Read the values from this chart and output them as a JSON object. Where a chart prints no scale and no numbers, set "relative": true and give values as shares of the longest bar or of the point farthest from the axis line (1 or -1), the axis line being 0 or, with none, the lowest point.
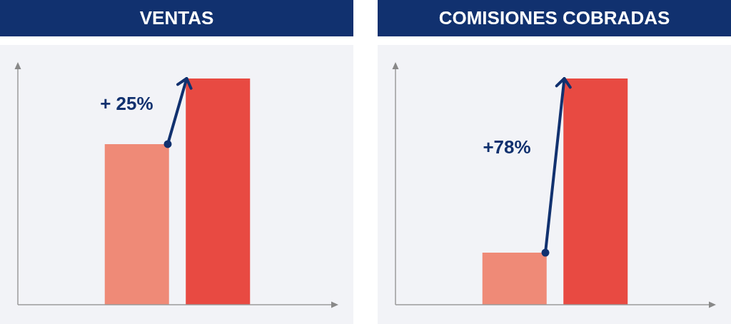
{
  "chart_data": [
    {
      "type": "bar",
      "title": "VENTAS",
      "categories": [
        null,
        null
      ],
      "values": [
        0.71,
        1
      ],
      "colors": [
        "#ef8a77",
        "#e84a42"
      ],
      "relative": true,
      "annotations": [
        "+ 25%"
      ]
    },
    {
      "type": "bar",
      "title": "COMISIONES COBRADAS",
      "categories": [
        null,
        null
      ],
      "values": [
        0.23,
        1
      ],
      "colors": [
        "#ef8a77",
        "#e84a42"
      ],
      "relative": true,
      "annotations": [
        "+78%"
      ]
    }
  ]
}
